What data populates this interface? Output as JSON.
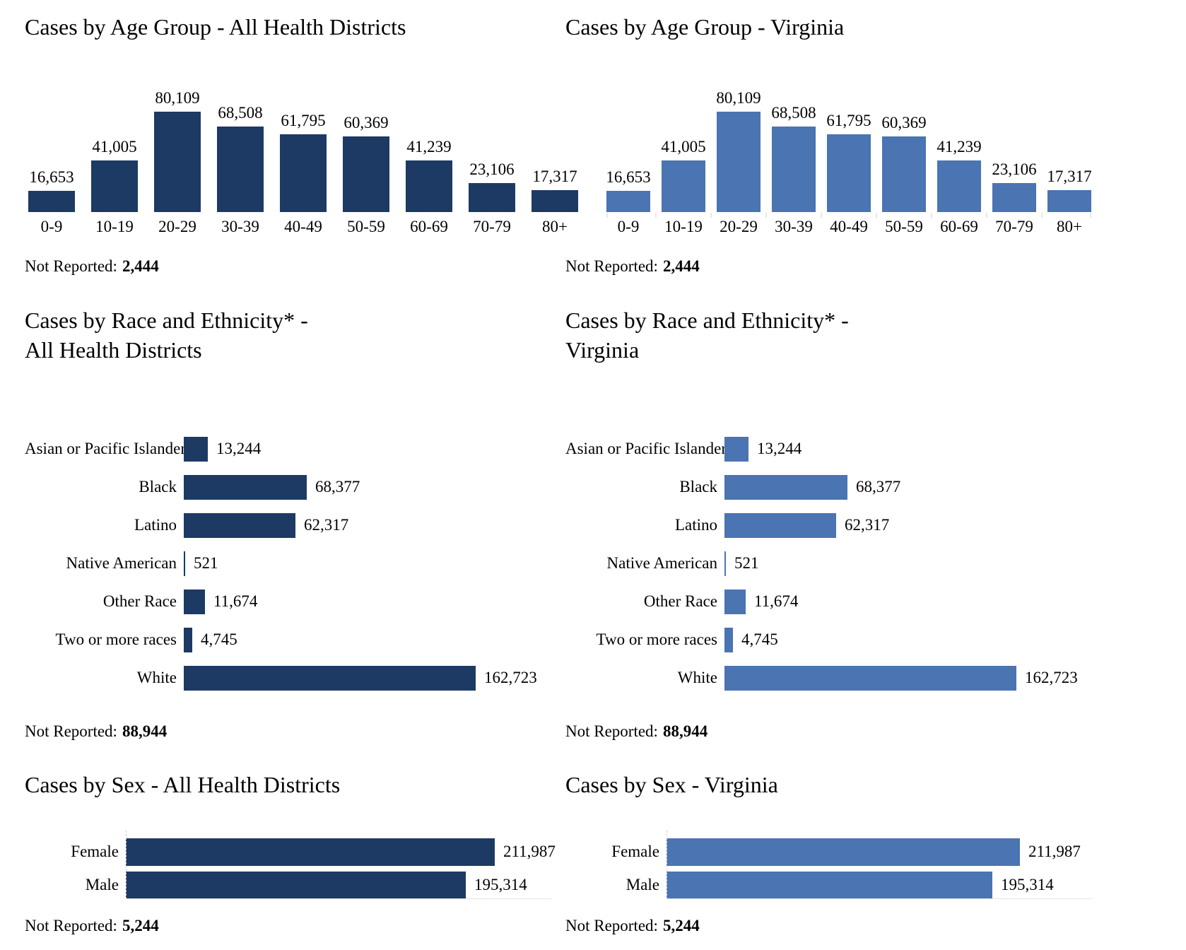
{
  "labels": {
    "not_reported_label": "Not Reported:"
  },
  "colors": {
    "dark_bar": "#1c3a63",
    "light_bar": "#4a74b2",
    "tick": "#e7e7e7",
    "dashed_axis": "#cfcfcf",
    "axis_line": "#e4e4e4",
    "text": "#000000"
  },
  "chart_data": [
    {
      "id": "age-all",
      "kind": "age",
      "type": "bar",
      "orientation": "vertical",
      "variant": "dark",
      "title": "Cases by Age Group - All Health Districts",
      "categories": [
        "0-9",
        "10-19",
        "20-29",
        "30-39",
        "40-49",
        "50-59",
        "60-69",
        "70-79",
        "80+"
      ],
      "values": [
        16653,
        41005,
        80109,
        68508,
        61795,
        60369,
        41239,
        23106,
        17317
      ],
      "value_labels": [
        "16,653",
        "41,005",
        "80,109",
        "68,508",
        "61,795",
        "60,369",
        "41,239",
        "23,106",
        "17,317"
      ],
      "not_reported": "2,444",
      "ylim": [
        0,
        80109
      ],
      "grid": false,
      "axis_ticks": false,
      "legend": "none"
    },
    {
      "id": "age-va",
      "kind": "age",
      "type": "bar",
      "orientation": "vertical",
      "variant": "light",
      "title": "Cases by Age Group - Virginia",
      "categories": [
        "0-9",
        "10-19",
        "20-29",
        "30-39",
        "40-49",
        "50-59",
        "60-69",
        "70-79",
        "80+"
      ],
      "values": [
        16653,
        41005,
        80109,
        68508,
        61795,
        60369,
        41239,
        23106,
        17317
      ],
      "value_labels": [
        "16,653",
        "41,005",
        "80,109",
        "68,508",
        "61,795",
        "60,369",
        "41,239",
        "23,106",
        "17,317"
      ],
      "not_reported": "2,444",
      "ylim": [
        0,
        80109
      ],
      "grid": false,
      "axis_ticks": true,
      "legend": "none"
    },
    {
      "id": "race-all",
      "kind": "race",
      "type": "bar",
      "orientation": "horizontal",
      "variant": "dark",
      "title": "Cases by Race and Ethnicity* -\nAll Health Districts",
      "categories": [
        "Asian or Pacific Islander",
        "Black",
        "Latino",
        "Native American",
        "Other Race",
        "Two or more races",
        "White"
      ],
      "values": [
        13244,
        68377,
        62317,
        521,
        11674,
        4745,
        162723
      ],
      "value_labels": [
        "13,244",
        "68,377",
        "62,317",
        "521",
        "11,674",
        "4,745",
        "162,723"
      ],
      "not_reported": "88,944",
      "xlim": [
        0,
        162723
      ],
      "grid": false,
      "legend": "none"
    },
    {
      "id": "race-va",
      "kind": "race",
      "type": "bar",
      "orientation": "horizontal",
      "variant": "light",
      "title": "Cases by Race and Ethnicity* -\nVirginia",
      "categories": [
        "Asian or Pacific Islander",
        "Black",
        "Latino",
        "Native American",
        "Other Race",
        "Two or more races",
        "White"
      ],
      "values": [
        13244,
        68377,
        62317,
        521,
        11674,
        4745,
        162723
      ],
      "value_labels": [
        "13,244",
        "68,377",
        "62,317",
        "521",
        "11,674",
        "4,745",
        "162,723"
      ],
      "not_reported": "88,944",
      "xlim": [
        0,
        162723
      ],
      "grid": false,
      "legend": "none"
    },
    {
      "id": "sex-all",
      "kind": "sex",
      "type": "bar",
      "orientation": "horizontal",
      "variant": "dark",
      "title": "Cases by Sex - All Health Districts",
      "categories": [
        "Female",
        "Male"
      ],
      "values": [
        211987,
        195314
      ],
      "value_labels": [
        "211,987",
        "195,314"
      ],
      "not_reported": "5,244",
      "xlim": [
        0,
        211987
      ],
      "grid": false,
      "legend": "none"
    },
    {
      "id": "sex-va",
      "kind": "sex",
      "type": "bar",
      "orientation": "horizontal",
      "variant": "light",
      "title": "Cases by Sex - Virginia",
      "categories": [
        "Female",
        "Male"
      ],
      "values": [
        211987,
        195314
      ],
      "value_labels": [
        "211,987",
        "195,314"
      ],
      "not_reported": "5,244",
      "xlim": [
        0,
        211987
      ],
      "grid": false,
      "legend": "none"
    }
  ]
}
